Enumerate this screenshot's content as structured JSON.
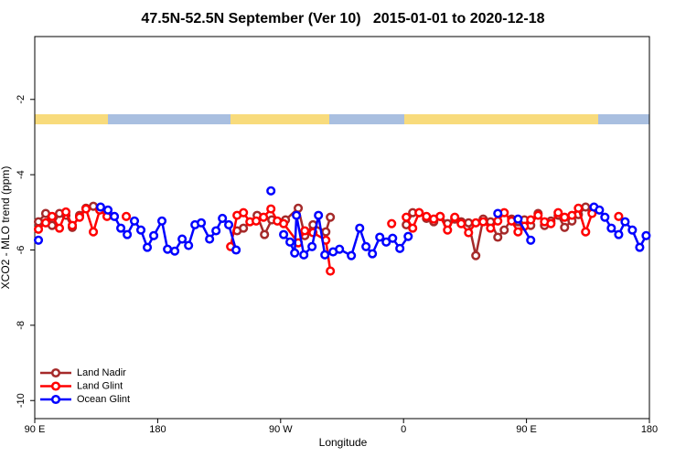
{
  "chart_data": {
    "type": "line",
    "title": "47.5N-52.5N September (Ver 10)   2015-01-01 to 2020-12-18",
    "x_label": "Longitude",
    "y_label": "XCO2 - MLO trend (ppm)",
    "xlim": [
      90,
      540
    ],
    "ylim": [
      -10.48,
      -0.33
    ],
    "xticks": [
      {
        "value": 90,
        "label": "90 E"
      },
      {
        "value": 180,
        "label": "180"
      },
      {
        "value": 270,
        "label": "90 W"
      },
      {
        "value": 360,
        "label": "0"
      },
      {
        "value": 450,
        "label": "90 E"
      },
      {
        "value": 540,
        "label": "180"
      }
    ],
    "yticks": [
      -2,
      -4,
      -6,
      -8,
      -10
    ],
    "legend": "bottom-left",
    "series": [
      {
        "name": "Land Nadir",
        "color": "#a52a2a",
        "x": [
          92.7,
          98,
          102.7,
          108.1,
          112.8,
          117.5,
          122.8,
          127.5,
          132.9,
          null,
          238.1,
          242.8,
          252.8,
          258.2,
          263.5,
          273.6,
          282.9,
          287.7,
          293.7,
          303.1,
          306.4,
          null,
          362,
          366.7,
          371.4,
          376.8,
          382.1,
          386.8,
          392.2,
          397.5,
          402.2,
          407.6,
          412.9,
          418.3,
          423.7,
          429,
          433.7,
          439.1,
          443.8,
          448.5,
          453.1,
          458.5,
          463.2,
          467.9,
          473.2,
          477.9,
          483.3,
          488,
          493.3,
          498
        ],
        "values": [
          -5.25,
          -5.03,
          -5.35,
          -5.03,
          -5.08,
          -5.4,
          -5.08,
          -4.89,
          -4.84,
          null,
          -5.49,
          -5.42,
          -5.08,
          -5.59,
          -5.2,
          -5.2,
          -4.89,
          -5.62,
          -5.33,
          -5.52,
          -5.13,
          null,
          -5.33,
          -5.01,
          -5.01,
          -5.16,
          -5.25,
          -5.11,
          -5.3,
          -5.18,
          -5.25,
          -5.28,
          -6.15,
          -5.18,
          -5.25,
          -5.66,
          -5.47,
          -5.18,
          -5.25,
          -5.2,
          -5.35,
          -5.03,
          -5.35,
          -5.23,
          -5.08,
          -5.4,
          -5.23,
          -5.06,
          -4.86,
          -5.01
        ]
      },
      {
        "name": "Land Glint",
        "color": "#ff0000",
        "x": [
          92.7,
          98,
          102.7,
          108.1,
          112.8,
          117.5,
          122.8,
          127.5,
          132.9,
          137.6,
          142.9,
          null,
          157,
          null,
          233.4,
          238.1,
          242.8,
          247.5,
          252.1,
          257.5,
          262.9,
          267.6,
          272.2,
          282.9,
          287.7,
          293.7,
          303.1,
          306.4,
          null,
          351.3,
          null,
          362,
          366.7,
          371.4,
          376.8,
          382.1,
          386.8,
          392.2,
          397.5,
          402.2,
          407.6,
          412.9,
          418.3,
          423.7,
          429,
          433.7,
          439.1,
          443.8,
          448.5,
          453.1,
          458.5,
          463.2,
          467.9,
          473.2,
          477.9,
          483.3,
          488,
          493.3,
          498,
          null,
          517.5
        ],
        "values": [
          -5.45,
          -5.28,
          -5.11,
          -5.42,
          -4.99,
          -5.35,
          -5.13,
          -4.91,
          -5.52,
          -4.94,
          -5.11,
          null,
          -5.11,
          null,
          -5.91,
          -5.08,
          -5.01,
          -5.25,
          -5.23,
          -5.13,
          -4.91,
          -5.23,
          -5.3,
          -5.81,
          -5.49,
          -5.54,
          -5.74,
          -6.56,
          null,
          -5.3,
          null,
          -5.13,
          -5.42,
          -5.01,
          -5.11,
          -5.18,
          -5.11,
          -5.47,
          -5.13,
          -5.3,
          -5.54,
          -5.28,
          -5.25,
          -5.42,
          -5.23,
          -5.01,
          -5.23,
          -5.52,
          -5.37,
          -5.2,
          -5.08,
          -5.25,
          -5.3,
          -5.01,
          -5.13,
          -5.08,
          -4.89,
          -5.52,
          -5.03,
          null,
          -5.11
        ]
      },
      {
        "name": "Ocean Glint",
        "color": "#0000ff",
        "x": [
          92.7,
          null,
          138.2,
          143.6,
          148.3,
          153,
          157.7,
          163,
          167.7,
          172.4,
          177.1,
          183.1,
          187.2,
          192.5,
          197.9,
          202.6,
          207.3,
          211.9,
          218,
          222.7,
          227.4,
          232,
          237.4,
          null,
          262.9,
          null,
          272.2,
          276.9,
          280.3,
          281.6,
          287,
          293,
          297.7,
          302.4,
          308.4,
          313.1,
          321.8,
          327.9,
          332.5,
          337.2,
          342.6,
          347.3,
          352,
          357.3,
          363.4,
          null,
          429,
          null,
          443.8,
          453.1,
          null,
          499.4,
          503.4,
          507.4,
          512.1,
          517.5,
          522.2,
          527.5,
          532.9,
          537.6
        ],
        "values": [
          -5.74,
          null,
          -4.86,
          -4.94,
          -5.11,
          -5.42,
          -5.59,
          -5.23,
          -5.47,
          -5.93,
          -5.62,
          -5.23,
          -5.98,
          -6.03,
          -5.71,
          -5.88,
          -5.33,
          -5.28,
          -5.71,
          -5.49,
          -5.16,
          -5.33,
          -6.0,
          null,
          -4.43,
          null,
          -5.59,
          -5.79,
          -6.08,
          -5.08,
          -6.13,
          -5.91,
          -5.08,
          -6.13,
          -6.05,
          -5.98,
          -6.15,
          -5.42,
          -5.91,
          -6.1,
          -5.66,
          -5.79,
          -5.69,
          -5.96,
          -5.64,
          null,
          -5.03,
          null,
          -5.18,
          -5.74,
          null,
          -4.86,
          -4.94,
          -5.13,
          -5.42,
          -5.59,
          -5.25,
          -5.47,
          -5.93,
          -5.62
        ]
      }
    ]
  }
}
